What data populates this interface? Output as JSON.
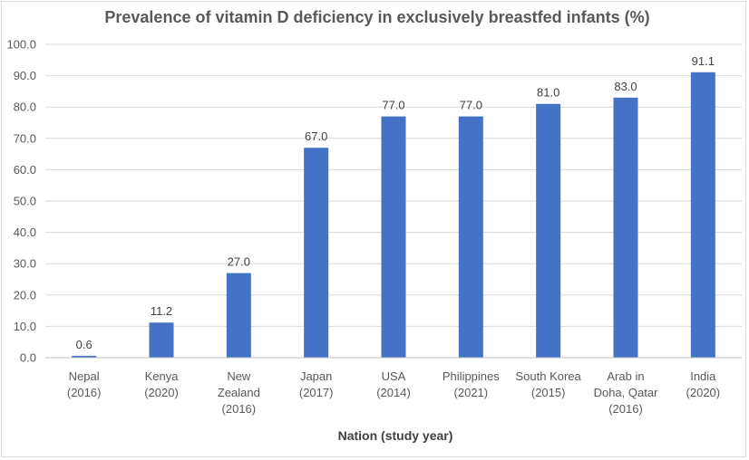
{
  "chart_data": {
    "type": "bar",
    "title": "Prevalence of vitamin D deficiency in exclusively breastfed infants (%)",
    "xlabel": "Nation (study year)",
    "ylabel": "",
    "ylim": [
      0,
      100
    ],
    "yticks": [
      "0.0",
      "10.0",
      "20.0",
      "30.0",
      "40.0",
      "50.0",
      "60.0",
      "70.0",
      "80.0",
      "90.0",
      "100.0"
    ],
    "grid": true,
    "bar_color": "#4472C4",
    "categories": [
      [
        "Nepal",
        "(2016)"
      ],
      [
        "Kenya",
        "(2020)"
      ],
      [
        "New",
        "Zealand",
        "(2016)"
      ],
      [
        "Japan",
        "(2017)"
      ],
      [
        "USA",
        "(2014)"
      ],
      [
        "Philippines",
        "(2021)"
      ],
      [
        "South Korea",
        "(2015)"
      ],
      [
        "Arab in",
        "Doha, Qatar",
        "(2016)"
      ],
      [
        "India",
        "(2020)"
      ]
    ],
    "values": [
      0.6,
      11.2,
      27.0,
      67.0,
      77.0,
      77.0,
      81.0,
      83.0,
      91.1
    ],
    "data_labels": [
      "0.6",
      "11.2",
      "27.0",
      "67.0",
      "77.0",
      "77.0",
      "81.0",
      "83.0",
      "91.1"
    ]
  }
}
